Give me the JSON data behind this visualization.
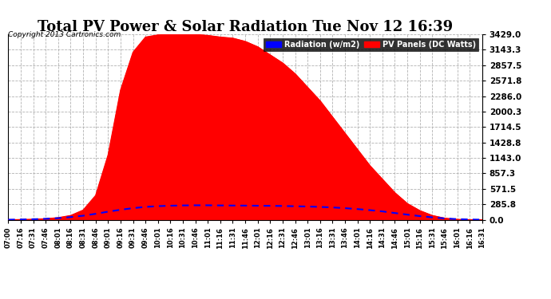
{
  "title": "Total PV Power & Solar Radiation Tue Nov 12 16:39",
  "copyright": "Copyright 2013 Cartronics.com",
  "bg_color": "#FFFFFF",
  "radiation_color": "#0000FF",
  "pv_color": "#FF0000",
  "yticks": [
    0.0,
    285.8,
    571.5,
    857.3,
    1143.0,
    1428.8,
    1714.5,
    2000.3,
    2286.0,
    2571.8,
    2857.5,
    3143.3,
    3429.0
  ],
  "ymax": 3429.0,
  "x_labels": [
    "07:00",
    "07:16",
    "07:31",
    "07:46",
    "08:01",
    "08:16",
    "08:31",
    "08:46",
    "09:01",
    "09:16",
    "09:31",
    "09:46",
    "10:01",
    "10:16",
    "10:31",
    "10:46",
    "11:01",
    "11:16",
    "11:31",
    "11:46",
    "12:01",
    "12:16",
    "12:31",
    "12:46",
    "13:01",
    "13:16",
    "13:31",
    "13:46",
    "14:01",
    "14:16",
    "14:31",
    "14:46",
    "15:01",
    "15:16",
    "15:31",
    "15:46",
    "16:01",
    "16:16",
    "16:31"
  ],
  "pv_values": [
    0,
    5,
    10,
    20,
    40,
    80,
    180,
    450,
    1200,
    2400,
    3100,
    3380,
    3420,
    3429,
    3429,
    3429,
    3410,
    3380,
    3360,
    3300,
    3200,
    3050,
    2900,
    2700,
    2450,
    2200,
    1900,
    1600,
    1300,
    1000,
    750,
    500,
    300,
    170,
    80,
    30,
    8,
    2,
    0
  ],
  "rad_values": [
    2,
    5,
    10,
    18,
    30,
    50,
    75,
    110,
    150,
    185,
    215,
    238,
    252,
    260,
    265,
    268,
    268,
    265,
    263,
    262,
    260,
    258,
    255,
    250,
    245,
    238,
    228,
    215,
    198,
    178,
    155,
    125,
    95,
    68,
    45,
    25,
    12,
    5,
    2
  ]
}
